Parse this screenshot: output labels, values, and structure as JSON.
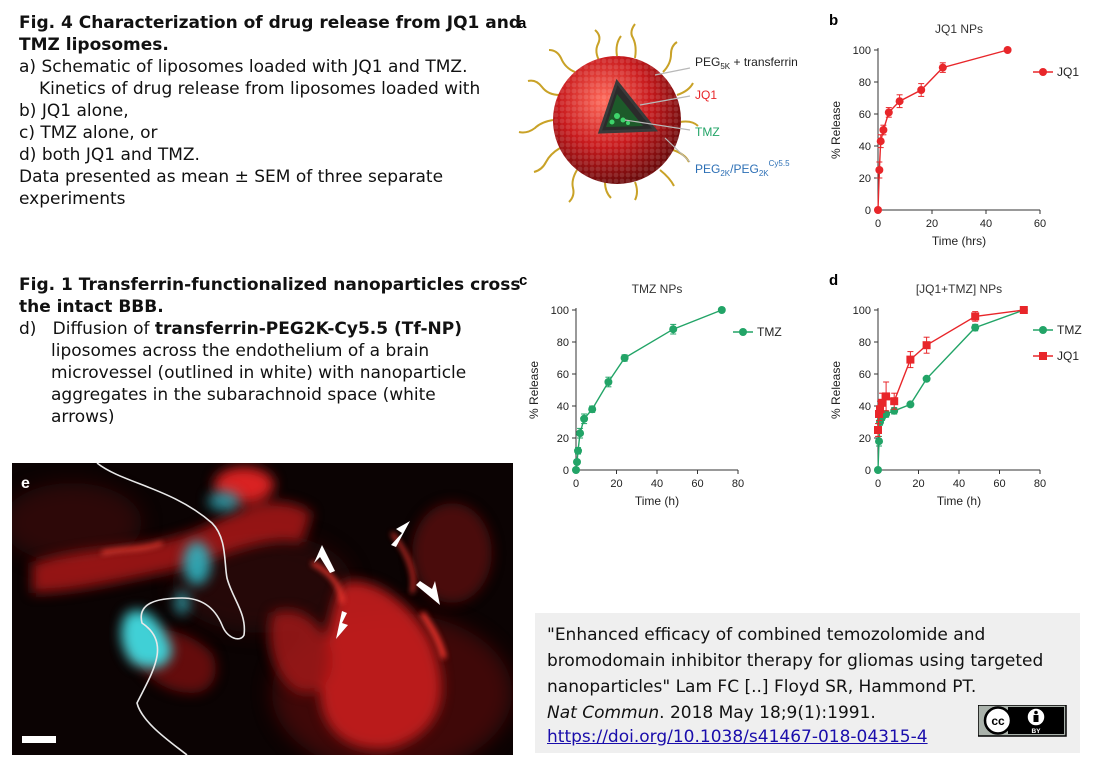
{
  "fig4": {
    "title1": "Fig. 4 Characterization of drug release from JQ1 and",
    "title2": "TMZ liposomes.",
    "l1": "a) Schematic of liposomes loaded with JQ1 and TMZ.",
    "l2": "Kinetics of drug release from liposomes loaded with",
    "l3": "b) JQ1 alone,",
    "l4": "c) TMZ alone, or",
    "l5": "d) both JQ1 and TMZ.",
    "l6": "Data presented as mean ± SEM of three separate",
    "l7": "experiments"
  },
  "fig1": {
    "title1": "Fig. 1 Transferrin-functionalized nanoparticles cross",
    "title2": "the intact BBB.",
    "d_label": "d)",
    "d1_pre": "Diffusion of ",
    "d1_bold": "transferrin-PEG2K-Cy5.5 (Tf-NP)",
    "d2": "liposomes across the endothelium of a brain",
    "d3": "microvessel (outlined in white) with nanoparticle",
    "d4": "aggregates in the subarachnoid space (white",
    "d5": "arrows)"
  },
  "panel_a": {
    "letter": "a",
    "label_peg5k": "PEG",
    "label_peg5k_sub": "5K",
    "label_peg5k_rest": " + transferrin",
    "label_jq1": "JQ1",
    "label_tmz": "TMZ",
    "label_peg2k": "PEG",
    "label_peg2k_sub1": "2K",
    "label_peg2k_mid": "/PEG",
    "label_peg2k_sub2": "2K",
    "label_peg2k_sup": "Cy5.5"
  },
  "panel_e": {
    "letter": "e"
  },
  "citation": {
    "line1": "\"Enhanced efficacy of combined temozolomide and",
    "line2": "bromodomain inhibitor therapy for gliomas using targeted",
    "line3": "nanoparticles\" Lam FC [..] Floyd SR, Hammond PT.",
    "line4_journal": "Nat Commun",
    "line4_rest": ". 2018 May 18;9(1):1991.",
    "doi": "https://doi.org/10.1038/s41467-018-04315-4",
    "license_cc": "cc",
    "license_by": "BY"
  },
  "colors": {
    "jq1": "#e8262a",
    "tmz": "#22a467"
  },
  "chart_data": [
    {
      "panel": "b",
      "type": "line",
      "title": "JQ1 NPs",
      "xlabel": "Time (hrs)",
      "ylabel": "% Release",
      "xlim": [
        0,
        60
      ],
      "ylim": [
        0,
        100
      ],
      "xticks": [
        0,
        20,
        40,
        60
      ],
      "yticks": [
        0,
        20,
        40,
        60,
        80,
        100
      ],
      "legend": "top-right",
      "series": [
        {
          "name": "JQ1",
          "color": "#e8262a",
          "marker": "circle",
          "x": [
            0,
            0.5,
            1,
            2,
            4,
            8,
            16,
            24,
            48
          ],
          "y": [
            0,
            25,
            43,
            50,
            61,
            68,
            75,
            89,
            100
          ],
          "err": [
            0,
            5,
            4,
            3,
            3,
            4,
            4,
            3,
            0
          ]
        }
      ]
    },
    {
      "panel": "c",
      "type": "line",
      "title": "TMZ NPs",
      "xlabel": "Time (h)",
      "ylabel": "% Release",
      "xlim": [
        0,
        80
      ],
      "ylim": [
        0,
        100
      ],
      "xticks": [
        0,
        20,
        40,
        60,
        80
      ],
      "yticks": [
        0,
        20,
        40,
        60,
        80,
        100
      ],
      "legend": "top-right",
      "series": [
        {
          "name": "TMZ",
          "color": "#22a467",
          "marker": "circle",
          "x": [
            0,
            0.5,
            1,
            2,
            4,
            8,
            16,
            24,
            48,
            72
          ],
          "y": [
            0,
            5,
            12,
            23,
            32,
            38,
            55,
            70,
            88,
            100
          ],
          "err": [
            0,
            1,
            2,
            3,
            3,
            2,
            3,
            2,
            3,
            0
          ]
        }
      ]
    },
    {
      "panel": "d",
      "type": "line",
      "title": "[JQ1+TMZ] NPs",
      "xlabel": "Time (h)",
      "ylabel": "% Release",
      "xlim": [
        0,
        80
      ],
      "ylim": [
        0,
        100
      ],
      "xticks": [
        0,
        20,
        40,
        60,
        80
      ],
      "yticks": [
        0,
        20,
        40,
        60,
        80,
        100
      ],
      "legend": "top-right",
      "series": [
        {
          "name": "TMZ",
          "color": "#22a467",
          "marker": "circle",
          "x": [
            0,
            0.5,
            1,
            2,
            4,
            8,
            16,
            24,
            48,
            72
          ],
          "y": [
            0,
            18,
            30,
            33,
            35,
            37,
            41,
            57,
            89,
            100
          ],
          "err": [
            0,
            3,
            2,
            2,
            2,
            2,
            1,
            1,
            2,
            0
          ]
        },
        {
          "name": "JQ1",
          "color": "#e8262a",
          "marker": "square",
          "x": [
            0,
            0.5,
            1,
            2,
            4,
            8,
            16,
            24,
            48,
            72
          ],
          "y": [
            25,
            35,
            38,
            42,
            46,
            43,
            69,
            78,
            96,
            100
          ],
          "err": [
            4,
            4,
            5,
            6,
            9,
            5,
            5,
            5,
            3,
            0
          ]
        }
      ]
    }
  ]
}
